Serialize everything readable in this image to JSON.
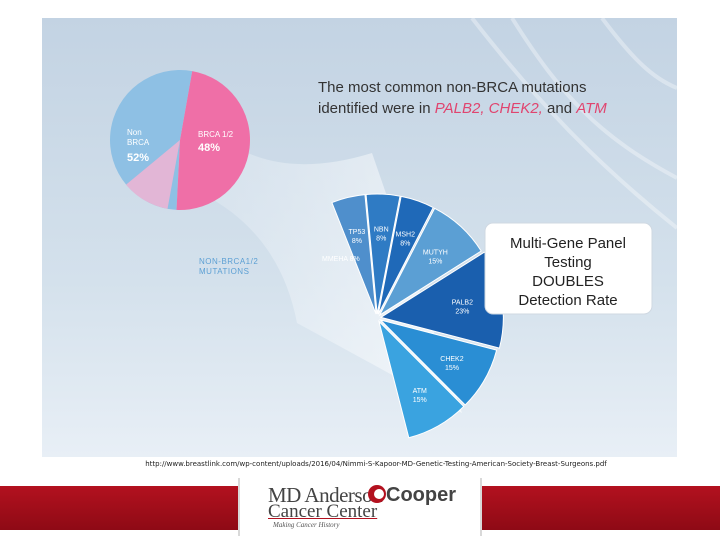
{
  "title_line1": "The most common non-BRCA mutations",
  "title_line2_prefix": "identified were in ",
  "title_line2_genes": "PALB2, CHEK2,",
  "title_line2_and": " and ",
  "title_line2_last": "ATM",
  "callout": [
    "Multi-Gene Panel",
    "Testing",
    "DOUBLES",
    "Detection Rate"
  ],
  "left_label": [
    "NON-BRCA1/2",
    "MUTATIONS"
  ],
  "citation": "http://www.breastlink.com/wp-content/uploads/2016/04/Nimmi-S-Kapoor-MD-Genetic-Testing-American-Society-Breast-Surgeons.pdf",
  "footer": {
    "line1": "MD Anderson",
    "line2": "Cancer Center",
    "partner": "Cooper",
    "tagline": "Making Cancer History"
  },
  "colors": {
    "background_top": "#c9d8e6",
    "background_bottom": "#e7eef5",
    "non_brca": "#8ec0e4",
    "brca": "#ef6fa7",
    "brca_light": "#f7b3d2",
    "brand_red": "#b3111f"
  },
  "chart_data": [
    {
      "type": "pie",
      "title": "",
      "labels": [
        "Non BRCA",
        "BRCA 1/2"
      ],
      "values": [
        52,
        48
      ],
      "value_labels": [
        "52%",
        "48%"
      ],
      "label_lines": [
        [
          "Non",
          "BRCA"
        ],
        [
          "BRCA 1/2"
        ]
      ]
    },
    {
      "type": "pie",
      "title": "",
      "labels": [
        "TP53",
        "NBN",
        "MSH2",
        "MUTYH",
        "PALB2",
        "CHEK2",
        "ATM"
      ],
      "values": [
        8,
        8,
        8,
        15,
        23,
        15,
        15
      ],
      "value_labels": [
        "8%",
        "8%",
        "8%",
        "15%",
        "23%",
        "15%",
        "15%"
      ],
      "extra_label": "MMEHA 8%",
      "colors": [
        "#4f8fcc",
        "#2f7bc4",
        "#1f69b8",
        "#5b9fd4",
        "#1a5fae",
        "#2a8ed4",
        "#3aa3e0"
      ]
    }
  ]
}
